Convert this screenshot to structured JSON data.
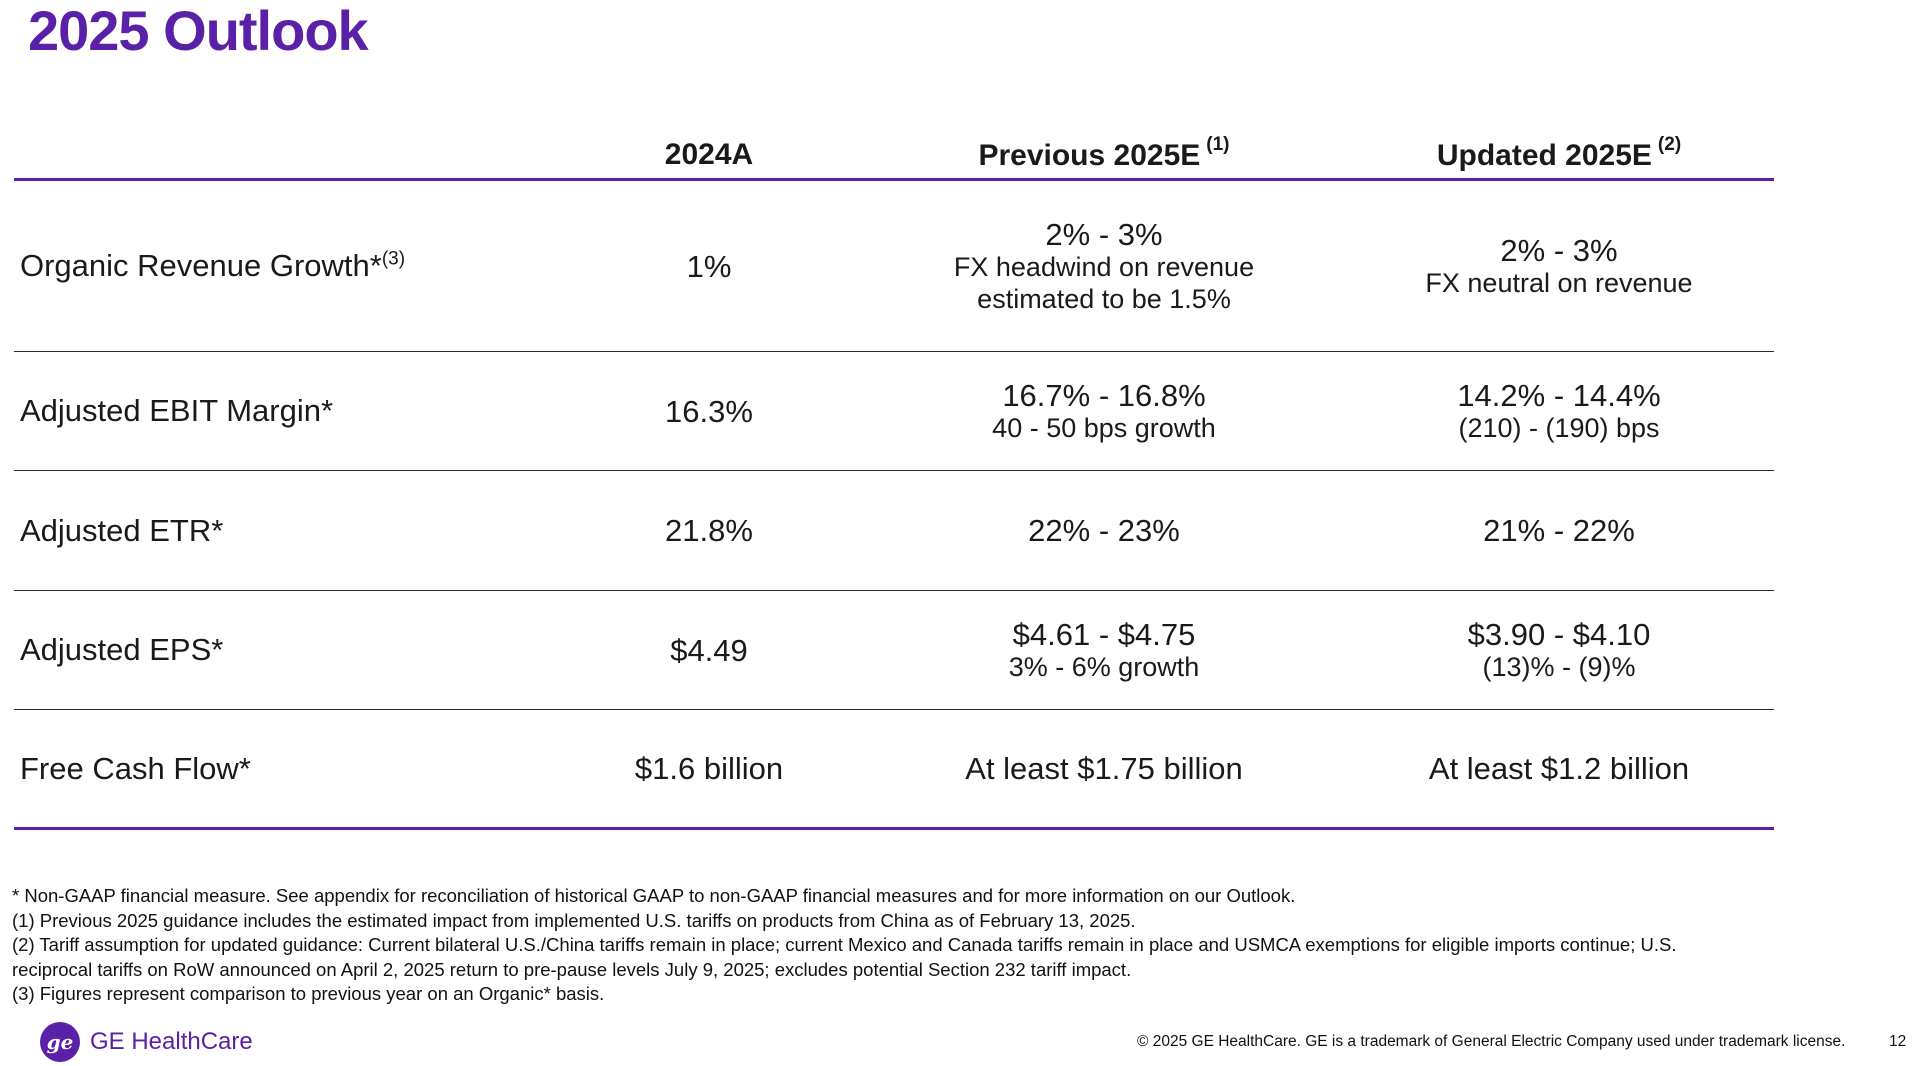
{
  "title": "2025 Outlook",
  "headers": {
    "col1": "2024A",
    "col2": "Previous 2025E",
    "col2_note": "(1)",
    "col3": "Updated 2025E",
    "col3_note": "(2)"
  },
  "rows": [
    {
      "label": "Organic Revenue Growth*",
      "label_note": "(3)",
      "a2024": "1%",
      "prev_main": "2% - 3%",
      "prev_sub1": "FX headwind on revenue",
      "prev_sub2": "estimated to be 1.5%",
      "upd_main": "2% - 3%",
      "upd_sub1": "FX neutral on revenue"
    },
    {
      "label": "Adjusted EBIT Margin*",
      "a2024": "16.3%",
      "prev_main": "16.7% - 16.8%",
      "prev_sub1": "40 - 50 bps growth",
      "upd_main": "14.2% - 14.4%",
      "upd_sub1": "(210) - (190) bps"
    },
    {
      "label": "Adjusted ETR*",
      "a2024": "21.8%",
      "prev_main": "22% - 23%",
      "upd_main": "21% - 22%"
    },
    {
      "label": "Adjusted EPS*",
      "a2024": "$4.49",
      "prev_main": "$4.61 - $4.75",
      "prev_sub1": "3% - 6% growth",
      "upd_main": "$3.90 - $4.10",
      "upd_sub1": "(13)% - (9)%"
    },
    {
      "label": "Free Cash Flow*",
      "a2024": "$1.6 billion",
      "prev_main": "At least $1.75 billion",
      "upd_main": "At least $1.2 billion"
    }
  ],
  "footnotes": [
    "* Non-GAAP financial measure. See appendix for reconciliation of historical GAAP to non-GAAP financial measures and for more information on our Outlook.",
    "(1) Previous 2025 guidance includes the estimated impact from implemented U.S. tariffs on products from China as of February 13, 2025.",
    "(2) Tariff assumption for updated guidance: Current bilateral U.S./China tariffs remain in place; current Mexico and Canada tariffs remain in place and USMCA exemptions for eligible imports continue; U.S.",
    "reciprocal tariffs on RoW announced on April 2, 2025 return to pre-pause levels July 9, 2025; excludes potential Section 232 tariff impact.",
    "(3) Figures represent comparison to previous year on an Organic* basis."
  ],
  "footer": {
    "logo_mark": "ge",
    "logo_text": "GE HealthCare",
    "copyright": "© 2025 GE HealthCare. GE is a trademark of General Electric Company used under trademark license.",
    "page_number": "12"
  },
  "colors": {
    "accent": "#5a20a8"
  }
}
